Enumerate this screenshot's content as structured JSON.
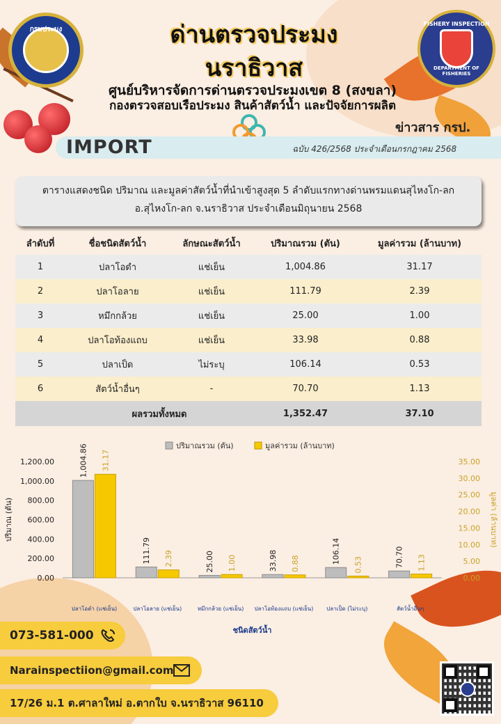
{
  "header": {
    "title_line1": "ด่านตรวจประมง",
    "title_line2": "นราธิวาส",
    "subtitle_line1": "ศูนย์บริหารจัดการด่านตรวจประมงเขต 8 (สงขลา)",
    "subtitle_line2": "กองตรวจสอบเรือประมง สินค้าสัตว์น้ำ และปัจจัยการผลิต",
    "logo_left_text": "กรมประมง",
    "logo_right_top": "FISHERY INSPECTION",
    "logo_right_bottom": "DEPARTMENT OF FISHERIES",
    "news_label": "ข่าวสาร กรป.",
    "section_label": "IMPORT",
    "issue": "ฉบับ 426/2568 ประจำเดือนกรกฎาคม  2568"
  },
  "caption": {
    "line1": "ตารางแสดงชนิด ปริมาณ และมูลค่าสัตว์น้ำที่นำเข้าสูงสุด 5 ลำดับแรกทางด่านพรมแดนสุไหงโก-ลก",
    "line2": "อ.สุไหงโก-ลก จ.นราธิวาส ประจำเดือนมิถุนายน  2568"
  },
  "table": {
    "headers": [
      "ลำดับที่",
      "ชื่อชนิดสัตว์น้ำ",
      "ลักษณะสัตว์น้ำ",
      "ปริมาณรวม (ตัน)",
      "มูลค่ารวม (ล้านบาท)"
    ],
    "rows": [
      [
        "1",
        "ปลาโอดำ",
        "แช่เย็น",
        "1,004.86",
        "31.17"
      ],
      [
        "2",
        "ปลาโอลาย",
        "แช่เย็น",
        "111.79",
        "2.39"
      ],
      [
        "3",
        "หมึกกล้วย",
        "แช่เย็น",
        "25.00",
        "1.00"
      ],
      [
        "4",
        "ปลาโอท้องแถบ",
        "แช่เย็น",
        "33.98",
        "0.88"
      ],
      [
        "5",
        "ปลาเป็ด",
        "ไม่ระบุ",
        "106.14",
        "0.53"
      ],
      [
        "6",
        "สัตว์น้ำอื่นๆ",
        "-",
        "70.70",
        "1.13"
      ]
    ],
    "total_label": "ผลรวมทั้งหมด",
    "total_quantity": "1,352.47",
    "total_value": "37.10"
  },
  "chart_data": {
    "type": "bar",
    "categories": [
      "ปลาโอดำ (แช่เย็น)",
      "ปลาโอลาย (แช่เย็น)",
      "หมึกกล้วย (แช่เย็น)",
      "ปลาโอท้องแถบ (แช่เย็น)",
      "ปลาเป็ด (ไม่ระบุ)",
      "สัตว์น้ำอื่นๆ"
    ],
    "series": [
      {
        "name": "ปริมาณรวม (ตัน)",
        "values": [
          1004.86,
          111.79,
          25.0,
          33.98,
          106.14,
          70.7
        ],
        "labels": [
          "1,004.86",
          "111.79",
          "25.00",
          "33.98",
          "106.14",
          "70.70"
        ],
        "axis": "left",
        "color": "#bdbdbd"
      },
      {
        "name": "มูลค่ารวม (ล้านบาท)",
        "values": [
          31.17,
          2.39,
          1.0,
          0.88,
          0.53,
          1.13
        ],
        "labels": [
          "31.17",
          "2.39",
          "1.00",
          "0.88",
          "0.53",
          "1.13"
        ],
        "axis": "right",
        "color": "#f6c800"
      }
    ],
    "xlabel": "ชนิดสัตว์น้ำ",
    "ylabel": "ปริมาณ (ตัน)",
    "y2label": "มูลค่า (ล้านบาท)",
    "ylim": [
      0,
      1200
    ],
    "y2lim": [
      0,
      35
    ],
    "yticks": [
      "0.00",
      "200.00",
      "400.00",
      "600.00",
      "800.00",
      "1,000.00",
      "1,200.00"
    ],
    "y2ticks": [
      "0.00",
      "5.00",
      "10.00",
      "15.00",
      "20.00",
      "25.00",
      "30.00",
      "35.00"
    ],
    "legend_position": "top",
    "grid": false
  },
  "contacts": {
    "phone": "073-581-000",
    "email": "Narainspectiion@gmail.com",
    "address": "17/26 ม.1 ต.ศาลาใหม่ อ.ตากใบ จ.นราธิวาส 96110"
  },
  "colors": {
    "accent_yellow": "#f7cc3d",
    "quantity_bar": "#bdbdbd",
    "value_bar": "#f6c800",
    "value_axis_text": "#c9a227"
  }
}
